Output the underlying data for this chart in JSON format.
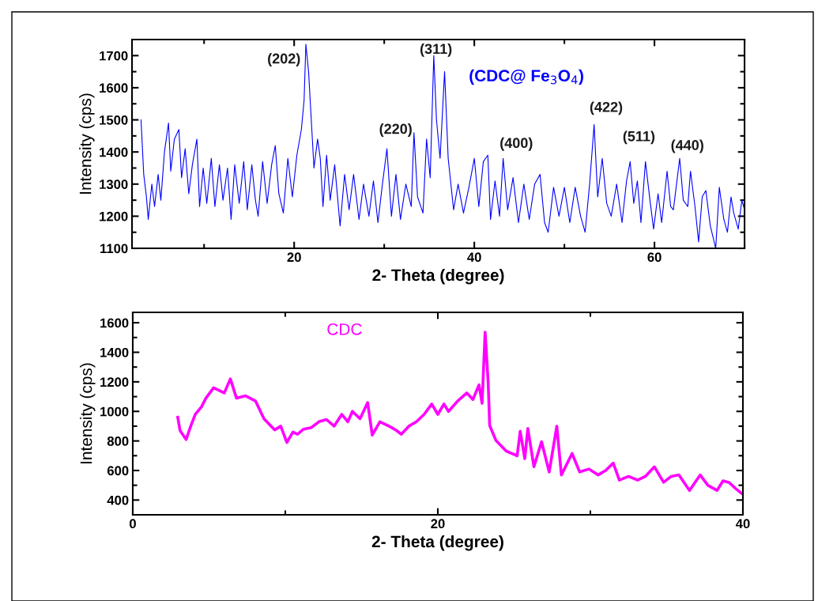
{
  "chart_data": [
    {
      "type": "line",
      "xlabel": "2- Theta (degree)",
      "ylabel": "Intensity (cps)",
      "xlim": [
        2,
        70
      ],
      "ylim": [
        1100,
        1750
      ],
      "xticks": [
        {
          "value": 10,
          "label": null
        },
        20,
        {
          "value": 30,
          "label": null
        },
        40,
        {
          "value": 50,
          "label": null
        },
        60,
        {
          "value": 70,
          "label": null
        }
      ],
      "yticks": [
        1100,
        {
          "value": 1150,
          "label": null
        },
        1200,
        {
          "value": 1250,
          "label": null
        },
        1300,
        {
          "value": 1350,
          "label": null
        },
        1400,
        {
          "value": 1450,
          "label": null
        },
        1500,
        {
          "value": 1550,
          "label": null
        },
        1600,
        {
          "value": 1650,
          "label": null
        },
        1700
      ],
      "series": [
        {
          "name": "(CDC@ Fe$_{3}$O$_{4}$)",
          "color": "#0000ff",
          "x": [
            3.0,
            3.3,
            3.6,
            3.8,
            4.2,
            4.5,
            4.9,
            5.2,
            5.6,
            6.05,
            6.3,
            6.7,
            7.2,
            7.5,
            7.9,
            8.3,
            8.7,
            9.2,
            9.5,
            9.9,
            10.3,
            10.8,
            11.2,
            11.7,
            12.1,
            12.6,
            13.0,
            13.4,
            13.9,
            14.4,
            14.8,
            15.3,
            15.7,
            16.0,
            16.5,
            17.0,
            17.5,
            17.9,
            18.3,
            18.8,
            19.3,
            19.8,
            20.3,
            20.8,
            21.1,
            21.3,
            21.6,
            21.9,
            22.2,
            22.6,
            22.9,
            23.2,
            23.6,
            24.0,
            24.5,
            25.1,
            25.6,
            26.1,
            26.6,
            27.2,
            27.7,
            28.3,
            28.8,
            29.3,
            29.8,
            30.3,
            30.8,
            31.3,
            31.8,
            32.4,
            33.0,
            33.3,
            33.7,
            34.3,
            34.7,
            35.1,
            35.5,
            35.8,
            36.2,
            36.7,
            37.1,
            37.7,
            38.2,
            38.8,
            39.4,
            40.0,
            40.5,
            41.0,
            41.5,
            41.8,
            42.3,
            42.8,
            43.2,
            43.7,
            44.3,
            44.9,
            45.5,
            46.1,
            46.7,
            47.3,
            47.8,
            48.2,
            48.8,
            49.4,
            50.0,
            50.6,
            51.2,
            51.8,
            52.3,
            52.8,
            53.3,
            53.7,
            54.2,
            54.7,
            55.2,
            55.8,
            56.4,
            56.9,
            57.3,
            57.7,
            58.1,
            58.5,
            59.0,
            59.5,
            59.9,
            60.4,
            60.8,
            61.4,
            61.8,
            62.1,
            62.8,
            63.2,
            63.7,
            64.0,
            64.5,
            64.9,
            65.3,
            65.7,
            66.2,
            66.8,
            67.2,
            67.7,
            68.1,
            68.5,
            68.8,
            69.3,
            69.7,
            70.0
          ],
          "values": [
            1500,
            1330,
            1260,
            1190,
            1300,
            1230,
            1330,
            1250,
            1400,
            1490,
            1340,
            1440,
            1470,
            1320,
            1410,
            1270,
            1360,
            1440,
            1230,
            1350,
            1240,
            1380,
            1230,
            1360,
            1250,
            1350,
            1190,
            1360,
            1240,
            1370,
            1220,
            1360,
            1250,
            1200,
            1370,
            1240,
            1360,
            1420,
            1270,
            1210,
            1380,
            1260,
            1390,
            1470,
            1560,
            1735,
            1650,
            1500,
            1350,
            1440,
            1380,
            1230,
            1390,
            1250,
            1360,
            1170,
            1330,
            1220,
            1330,
            1190,
            1300,
            1200,
            1310,
            1180,
            1300,
            1410,
            1200,
            1330,
            1190,
            1300,
            1230,
            1460,
            1260,
            1210,
            1440,
            1320,
            1700,
            1500,
            1380,
            1650,
            1380,
            1220,
            1300,
            1210,
            1290,
            1380,
            1230,
            1370,
            1390,
            1190,
            1310,
            1200,
            1380,
            1220,
            1320,
            1180,
            1300,
            1190,
            1300,
            1330,
            1180,
            1150,
            1290,
            1200,
            1290,
            1180,
            1290,
            1200,
            1150,
            1300,
            1485,
            1260,
            1380,
            1240,
            1200,
            1300,
            1180,
            1310,
            1370,
            1240,
            1310,
            1180,
            1370,
            1250,
            1160,
            1270,
            1180,
            1340,
            1230,
            1220,
            1380,
            1250,
            1230,
            1340,
            1230,
            1120,
            1260,
            1280,
            1170,
            1100,
            1290,
            1190,
            1150,
            1260,
            1210,
            1160,
            1250,
            1220
          ]
        }
      ],
      "annotations": [
        {
          "text": "(202)",
          "x": 21.3,
          "y": 1735
        },
        {
          "text": "(311)",
          "x": 35.5,
          "y": 1700
        },
        {
          "text": "(220)",
          "x": 30.3,
          "y": 1410
        },
        {
          "text": "(400)",
          "x": 43.2,
          "y": 1380
        },
        {
          "text": "(422)",
          "x": 53.3,
          "y": 1485
        },
        {
          "text": "(511)",
          "x": 57.3,
          "y": 1370
        },
        {
          "text": "(440)",
          "x": 62.8,
          "y": 1380
        }
      ]
    },
    {
      "type": "line",
      "xlabel": "2- Theta (degree)",
      "ylabel": "Intensity (cps)",
      "xlim": [
        0,
        40
      ],
      "ylim": [
        300,
        1670
      ],
      "xticks": [
        0,
        {
          "value": 10,
          "label": null
        },
        20,
        {
          "value": 30,
          "label": null
        },
        40
      ],
      "yticks": [
        400,
        {
          "value": 500,
          "label": null
        },
        600,
        {
          "value": 700,
          "label": null
        },
        800,
        {
          "value": 900,
          "label": null
        },
        1000,
        {
          "value": 1100,
          "label": null
        },
        1200,
        {
          "value": 1300,
          "label": null
        },
        1400,
        {
          "value": 1500,
          "label": null
        },
        1600
      ],
      "series": [
        {
          "name": "CDC",
          "color": "#ff00ff",
          "x": [
            2.95,
            3.1,
            3.5,
            3.8,
            4.1,
            4.5,
            4.8,
            5.3,
            6.0,
            6.4,
            6.8,
            7.4,
            8.05,
            8.6,
            9.3,
            9.7,
            10.1,
            10.5,
            10.8,
            11.2,
            11.7,
            12.2,
            12.7,
            13.2,
            13.7,
            14.1,
            14.4,
            14.9,
            15.4,
            15.7,
            16.2,
            16.9,
            17.3,
            17.6,
            18.1,
            18.6,
            19.1,
            19.6,
            20.0,
            20.4,
            20.7,
            21.3,
            21.9,
            22.3,
            22.7,
            22.9,
            23.1,
            23.3,
            23.4,
            23.8,
            24.5,
            25.2,
            25.4,
            25.7,
            25.9,
            26.3,
            26.8,
            27.3,
            27.8,
            28.1,
            28.8,
            29.3,
            29.9,
            30.5,
            31.0,
            31.5,
            31.9,
            32.5,
            33.1,
            33.6,
            34.2,
            34.8,
            35.3,
            35.8,
            36.5,
            37.2,
            37.7,
            38.3,
            38.7,
            39.1,
            39.5,
            39.9
          ],
          "values": [
            960,
            870,
            810,
            900,
            980,
            1030,
            1090,
            1160,
            1125,
            1220,
            1090,
            1105,
            1070,
            950,
            875,
            900,
            790,
            860,
            845,
            880,
            890,
            930,
            945,
            900,
            980,
            930,
            1000,
            950,
            1060,
            840,
            930,
            895,
            870,
            845,
            900,
            930,
            980,
            1050,
            980,
            1050,
            1000,
            1070,
            1125,
            1080,
            1180,
            1055,
            1536,
            1195,
            905,
            805,
            730,
            700,
            866,
            680,
            884,
            625,
            795,
            590,
            900,
            570,
            715,
            590,
            610,
            570,
            600,
            650,
            535,
            560,
            535,
            560,
            625,
            520,
            560,
            570,
            465,
            570,
            500,
            465,
            530,
            518,
            480,
            446
          ]
        }
      ]
    }
  ]
}
